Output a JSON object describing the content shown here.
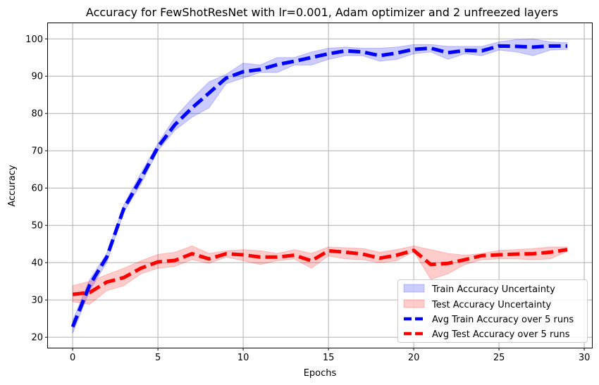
{
  "chart_data": {
    "type": "line",
    "title": "Accuracy for FewShotResNet with lr=0.001, Adam optimizer and 2 unfreezed layers",
    "xlabel": "Epochs",
    "ylabel": "Accuracy",
    "xlim": [
      -1.45,
      30.45
    ],
    "ylim": [
      17.2,
      104.2
    ],
    "xticks": [
      0,
      5,
      10,
      15,
      20,
      25,
      30
    ],
    "yticks": [
      20,
      30,
      40,
      50,
      60,
      70,
      80,
      90,
      100
    ],
    "grid": true,
    "legend_position": "lower-right",
    "x": [
      0,
      1,
      2,
      3,
      4,
      5,
      6,
      7,
      8,
      9,
      10,
      11,
      12,
      13,
      14,
      15,
      16,
      17,
      18,
      19,
      20,
      21,
      22,
      23,
      24,
      25,
      26,
      27,
      28,
      29
    ],
    "series": [
      {
        "name": "Avg Train Accuracy over 5 runs",
        "color": "#0000ff",
        "values": [
          22.8,
          34.0,
          41.5,
          54.5,
          62.5,
          71.0,
          77.0,
          81.5,
          85.5,
          89.5,
          91.2,
          91.8,
          93.1,
          94.0,
          95.0,
          96.0,
          96.8,
          96.5,
          95.5,
          96.2,
          97.2,
          97.5,
          96.3,
          96.9,
          96.8,
          98.1,
          98.0,
          97.8,
          98.1,
          98.1
        ]
      },
      {
        "name": "Avg Test Accuracy over 5 runs",
        "color": "#ff0000",
        "values": [
          31.5,
          32.0,
          34.8,
          36.0,
          38.5,
          40.2,
          40.6,
          42.4,
          41.0,
          42.4,
          42.1,
          41.5,
          41.5,
          42.0,
          40.5,
          43.2,
          42.8,
          42.3,
          41.2,
          42.0,
          43.3,
          39.5,
          39.8,
          40.8,
          41.9,
          42.1,
          42.3,
          42.4,
          42.8,
          43.5
        ]
      }
    ],
    "bands": [
      {
        "name": "Train Accuracy Uncertainty",
        "color": "#0000ff",
        "lower": [
          21.0,
          32.5,
          40.0,
          53.5,
          61.0,
          70.0,
          75.5,
          79.0,
          81.5,
          88.0,
          89.5,
          91.0,
          91.0,
          93.0,
          93.0,
          94.5,
          95.5,
          95.5,
          94.0,
          94.5,
          96.0,
          96.5,
          94.5,
          96.0,
          95.5,
          97.0,
          96.5,
          95.5,
          97.0,
          97.2
        ],
        "upper": [
          24.5,
          35.5,
          42.5,
          55.5,
          64.0,
          72.0,
          79.0,
          84.0,
          88.5,
          90.5,
          93.5,
          93.0,
          95.0,
          95.0,
          96.5,
          97.5,
          97.8,
          97.5,
          97.5,
          97.8,
          98.5,
          98.5,
          98.0,
          98.0,
          98.0,
          99.2,
          99.8,
          100.0,
          99.2,
          99.0
        ]
      },
      {
        "name": "Test Accuracy Uncertainty",
        "color": "#ff0000",
        "lower": [
          29.5,
          28.8,
          32.5,
          33.8,
          37.0,
          38.5,
          39.0,
          40.8,
          39.8,
          41.5,
          40.5,
          39.5,
          40.5,
          41.0,
          38.5,
          41.8,
          41.0,
          40.8,
          40.0,
          40.5,
          43.0,
          35.5,
          37.0,
          39.5,
          40.8,
          41.0,
          41.0,
          40.8,
          41.0,
          43.0
        ],
        "upper": [
          33.8,
          35.0,
          36.8,
          38.5,
          40.5,
          42.2,
          42.8,
          44.5,
          42.5,
          43.2,
          43.5,
          43.2,
          42.5,
          43.5,
          42.5,
          44.2,
          44.0,
          43.8,
          42.8,
          43.5,
          44.5,
          43.5,
          42.5,
          42.0,
          42.5,
          43.3,
          43.5,
          43.8,
          44.2,
          44.2
        ]
      }
    ]
  }
}
